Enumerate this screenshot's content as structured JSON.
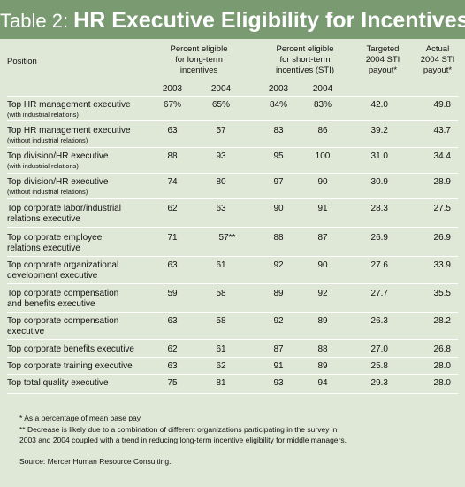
{
  "title": {
    "prefix": "Table 2: ",
    "main": "HR Executive Eligibility for Incentives"
  },
  "headers": {
    "position": "Position",
    "long_term": [
      "Percent eligible",
      "for long-term",
      "incentives"
    ],
    "short_term": [
      "Percent eligible",
      "for short-term",
      "incentives (STI)"
    ],
    "targeted": [
      "Targeted",
      "2004 STI",
      "payout*"
    ],
    "actual": [
      "Actual",
      "2004 STI",
      "payout*"
    ],
    "years": [
      "2003",
      "2004",
      "2003",
      "2004"
    ]
  },
  "rows": [
    {
      "title": "Top HR management executive",
      "note": "(with industrial relations)",
      "lt2003": "67%",
      "lt2004": "65%",
      "st2003": "84%",
      "st2004": "83%",
      "targeted": "42.0",
      "actual": "49.8"
    },
    {
      "title": "Top HR management executive",
      "note": "(without industrial relations)",
      "lt2003": "63",
      "lt2004": "57",
      "st2003": "83",
      "st2004": "86",
      "targeted": "39.2",
      "actual": "43.7"
    },
    {
      "title": "Top division/HR executive",
      "note": "(with industrial relations)",
      "lt2003": "88",
      "lt2004": "93",
      "st2003": "95",
      "st2004": "100",
      "targeted": "31.0",
      "actual": "34.4"
    },
    {
      "title": "Top division/HR executive",
      "note": "(without industrial relations)",
      "lt2003": "74",
      "lt2004": "80",
      "st2003": "97",
      "st2004": "90",
      "targeted": "30.9",
      "actual": "28.9"
    },
    {
      "title": "Top corporate labor/industrial",
      "title2": "relations executive",
      "lt2003": "62",
      "lt2004": "63",
      "st2003": "90",
      "st2004": "91",
      "targeted": "28.3",
      "actual": "27.5"
    },
    {
      "title": "Top corporate employee",
      "title2": "relations executive",
      "lt2003": "71",
      "lt2004": "57**",
      "st2003": "88",
      "st2004": "87",
      "targeted": "26.9",
      "actual": "26.9"
    },
    {
      "title": "Top corporate organizational",
      "title2": "development executive",
      "lt2003": "63",
      "lt2004": "61",
      "st2003": "92",
      "st2004": "90",
      "targeted": "27.6",
      "actual": "33.9"
    },
    {
      "title": "Top corporate compensation",
      "title2": "and benefits executive",
      "lt2003": "59",
      "lt2004": "58",
      "st2003": "89",
      "st2004": "92",
      "targeted": "27.7",
      "actual": "35.5"
    },
    {
      "title": "Top corporate compensation",
      "title2": "executive",
      "lt2003": "63",
      "lt2004": "58",
      "st2003": "92",
      "st2004": "89",
      "targeted": "26.3",
      "actual": "28.2"
    },
    {
      "title": "Top corporate benefits executive",
      "lt2003": "62",
      "lt2004": "61",
      "st2003": "87",
      "st2004": "88",
      "targeted": "27.0",
      "actual": "26.8"
    },
    {
      "title": "Top corporate training executive",
      "lt2003": "63",
      "lt2004": "62",
      "st2003": "91",
      "st2004": "89",
      "targeted": "25.8",
      "actual": "28.0"
    },
    {
      "title": "Top total quality executive",
      "lt2003": "75",
      "lt2004": "81",
      "st2003": "93",
      "st2004": "94",
      "targeted": "29.3",
      "actual": "28.0"
    }
  ],
  "footnotes": {
    "f1": "* As a percentage of mean base pay.",
    "f2a": "** Decrease is likely due to a combination of different organizations participating in the survey in",
    "f2b": "2003 and 2004 coupled with a trend in reducing long-term incentive eligibility for middle managers.",
    "source": "Source: Mercer Human Resource Consulting."
  }
}
